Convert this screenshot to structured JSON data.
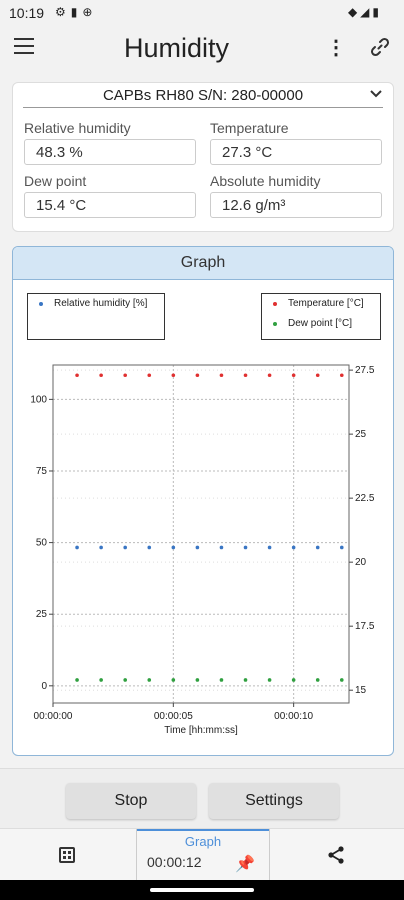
{
  "status": {
    "time": "10:19"
  },
  "header": {
    "title": "Humidity"
  },
  "device": {
    "name": "CAPBs RH80 S/N: 280-00000"
  },
  "fields": {
    "rh_label": "Relative humidity",
    "rh_value": "48.3 %",
    "temp_label": "Temperature",
    "temp_value": "27.3 °C",
    "dew_label": "Dew point",
    "dew_value": "15.4 °C",
    "abs_label": "Absolute humidity",
    "abs_value": "12.6 g/m³"
  },
  "graph": {
    "title": "Graph",
    "chart_data": {
      "type": "scatter",
      "xlabel": "Time [hh:mm:ss]",
      "x_ticks": [
        "00:00:00",
        "00:00:05",
        "00:00:10"
      ],
      "x": [
        1,
        2,
        3,
        4,
        5,
        6,
        7,
        8,
        9,
        10,
        11,
        12
      ],
      "xlim": [
        0,
        12.3
      ],
      "y_left": {
        "ticks": [
          "100",
          "75",
          "50",
          "25",
          "0"
        ],
        "lim": [
          -6,
          112
        ]
      },
      "y_right": {
        "ticks": [
          "27.5",
          "25",
          "22.5",
          "20",
          "17.5",
          "15"
        ],
        "lim": [
          14.5,
          27.7
        ]
      },
      "series": [
        {
          "name": "Relative humidity [%]",
          "axis": "left",
          "color": "#3a76c4",
          "values": [
            48.3,
            48.3,
            48.3,
            48.3,
            48.3,
            48.3,
            48.3,
            48.3,
            48.3,
            48.3,
            48.3,
            48.3
          ]
        },
        {
          "name": "Temperature [°C]",
          "axis": "right",
          "color": "#e03030",
          "values": [
            27.3,
            27.3,
            27.3,
            27.3,
            27.3,
            27.3,
            27.3,
            27.3,
            27.3,
            27.3,
            27.3,
            27.3
          ]
        },
        {
          "name": "Dew point [°C]",
          "axis": "right",
          "color": "#30a040",
          "values": [
            15.4,
            15.4,
            15.4,
            15.4,
            15.4,
            15.4,
            15.4,
            15.4,
            15.4,
            15.4,
            15.4,
            15.4
          ]
        }
      ]
    }
  },
  "buttons": {
    "stop": "Stop",
    "settings": "Settings"
  },
  "nav": {
    "graph_tab": "Graph",
    "timer": "00:00:12"
  }
}
